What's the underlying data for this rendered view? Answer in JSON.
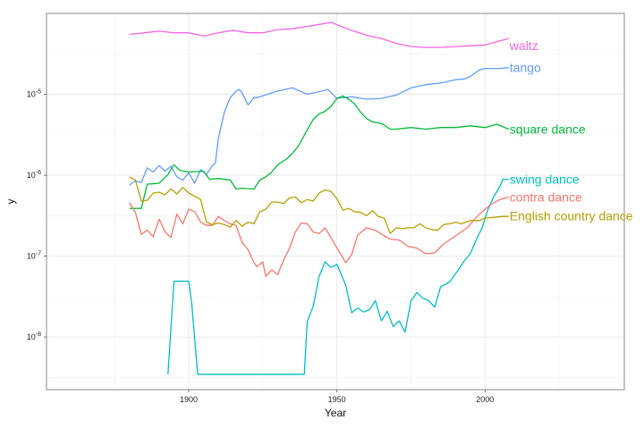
{
  "chart_data": {
    "type": "line",
    "title": "",
    "xlabel": "Year",
    "ylabel": "y",
    "y_scale": "log10",
    "xlim": [
      1852,
      2047
    ],
    "ylim_log10": [
      -8.65,
      -4.0
    ],
    "x_ticks": [
      {
        "value": 1900,
        "label": "1900"
      },
      {
        "value": 1950,
        "label": "1950"
      },
      {
        "value": 2000,
        "label": "2000"
      }
    ],
    "y_ticks": [
      {
        "exp": -8,
        "label": "10",
        "sup": "-8"
      },
      {
        "exp": -7,
        "label": "10",
        "sup": "-7"
      },
      {
        "exp": -6,
        "label": "10",
        "sup": "-6"
      },
      {
        "exp": -5,
        "label": "10",
        "sup": "-5"
      }
    ],
    "grid": true,
    "legend": "direct labels at line ends (right)",
    "series": [
      {
        "name": "waltz",
        "color": "#f564e3",
        "label_log10": -4.4,
        "points": [
          [
            1880,
            -4.26
          ],
          [
            1885,
            -4.24
          ],
          [
            1890,
            -4.22
          ],
          [
            1895,
            -4.24
          ],
          [
            1900,
            -4.24
          ],
          [
            1905,
            -4.28
          ],
          [
            1910,
            -4.24
          ],
          [
            1915,
            -4.21
          ],
          [
            1920,
            -4.24
          ],
          [
            1925,
            -4.24
          ],
          [
            1930,
            -4.2
          ],
          [
            1935,
            -4.19
          ],
          [
            1940,
            -4.16
          ],
          [
            1945,
            -4.13
          ],
          [
            1948,
            -4.11
          ],
          [
            1950,
            -4.14
          ],
          [
            1955,
            -4.21
          ],
          [
            1960,
            -4.27
          ],
          [
            1965,
            -4.31
          ],
          [
            1970,
            -4.37
          ],
          [
            1975,
            -4.41
          ],
          [
            1980,
            -4.42
          ],
          [
            1985,
            -4.42
          ],
          [
            1990,
            -4.41
          ],
          [
            1995,
            -4.4
          ],
          [
            2000,
            -4.39
          ],
          [
            2005,
            -4.34
          ],
          [
            2008,
            -4.31
          ]
        ]
      },
      {
        "name": "tango",
        "color": "#619cff",
        "label_log10": -4.67,
        "points": [
          [
            1880,
            -6.12
          ],
          [
            1882,
            -6.07
          ],
          [
            1884,
            -6.09
          ],
          [
            1886,
            -5.91
          ],
          [
            1888,
            -5.96
          ],
          [
            1890,
            -5.88
          ],
          [
            1892,
            -5.95
          ],
          [
            1894,
            -5.89
          ],
          [
            1896,
            -6.02
          ],
          [
            1898,
            -6.06
          ],
          [
            1900,
            -5.97
          ],
          [
            1902,
            -6.1
          ],
          [
            1904,
            -5.93
          ],
          [
            1906,
            -5.99
          ],
          [
            1908,
            -5.88
          ],
          [
            1909,
            -5.85
          ],
          [
            1910,
            -5.55
          ],
          [
            1912,
            -5.22
          ],
          [
            1914,
            -5.04
          ],
          [
            1916,
            -4.96
          ],
          [
            1917,
            -4.94
          ],
          [
            1918,
            -4.98
          ],
          [
            1920,
            -5.13
          ],
          [
            1922,
            -5.04
          ],
          [
            1923,
            -5.04
          ],
          [
            1925,
            -5.02
          ],
          [
            1930,
            -4.96
          ],
          [
            1935,
            -4.92
          ],
          [
            1940,
            -5.0
          ],
          [
            1945,
            -4.96
          ],
          [
            1947,
            -4.94
          ],
          [
            1950,
            -5.05
          ],
          [
            1955,
            -5.03
          ],
          [
            1960,
            -5.06
          ],
          [
            1965,
            -5.05
          ],
          [
            1970,
            -5.01
          ],
          [
            1975,
            -4.92
          ],
          [
            1980,
            -4.88
          ],
          [
            1985,
            -4.86
          ],
          [
            1990,
            -4.82
          ],
          [
            1993,
            -4.81
          ],
          [
            1995,
            -4.78
          ],
          [
            1998,
            -4.7
          ],
          [
            2000,
            -4.68
          ],
          [
            2005,
            -4.68
          ],
          [
            2008,
            -4.67
          ]
        ]
      },
      {
        "name": "square dance",
        "color": "#00ba38",
        "label_log10": -5.43,
        "points": [
          [
            1880,
            -6.41
          ],
          [
            1884,
            -6.41
          ],
          [
            1886,
            -6.11
          ],
          [
            1890,
            -6.1
          ],
          [
            1893,
            -5.99
          ],
          [
            1895,
            -5.87
          ],
          [
            1897,
            -5.94
          ],
          [
            1900,
            -5.96
          ],
          [
            1905,
            -5.95
          ],
          [
            1907,
            -6.05
          ],
          [
            1910,
            -6.04
          ],
          [
            1914,
            -6.06
          ],
          [
            1916,
            -6.17
          ],
          [
            1918,
            -6.16
          ],
          [
            1922,
            -6.17
          ],
          [
            1924,
            -6.06
          ],
          [
            1926,
            -6.02
          ],
          [
            1928,
            -5.96
          ],
          [
            1930,
            -5.87
          ],
          [
            1933,
            -5.8
          ],
          [
            1935,
            -5.73
          ],
          [
            1937,
            -5.64
          ],
          [
            1940,
            -5.44
          ],
          [
            1942,
            -5.31
          ],
          [
            1944,
            -5.24
          ],
          [
            1946,
            -5.21
          ],
          [
            1948,
            -5.15
          ],
          [
            1950,
            -5.05
          ],
          [
            1952,
            -5.02
          ],
          [
            1954,
            -5.06
          ],
          [
            1956,
            -5.12
          ],
          [
            1958,
            -5.22
          ],
          [
            1960,
            -5.3
          ],
          [
            1962,
            -5.34
          ],
          [
            1965,
            -5.36
          ],
          [
            1968,
            -5.43
          ],
          [
            1970,
            -5.43
          ],
          [
            1975,
            -5.41
          ],
          [
            1980,
            -5.43
          ],
          [
            1985,
            -5.41
          ],
          [
            1990,
            -5.41
          ],
          [
            1995,
            -5.39
          ],
          [
            2000,
            -5.41
          ],
          [
            2004,
            -5.37
          ],
          [
            2008,
            -5.43
          ]
        ]
      },
      {
        "name": "swing dance",
        "color": "#00bfc4",
        "label_log10": -6.05,
        "points": [
          [
            1893,
            -8.46
          ],
          [
            1895,
            -7.31
          ],
          [
            1897,
            -7.31
          ],
          [
            1899,
            -7.31
          ],
          [
            1900,
            -7.31
          ],
          [
            1901,
            -7.58
          ],
          [
            1903,
            -8.46
          ],
          [
            1905,
            -8.46
          ],
          [
            1915,
            -8.46
          ],
          [
            1925,
            -8.46
          ],
          [
            1935,
            -8.46
          ],
          [
            1939,
            -8.46
          ],
          [
            1940,
            -7.81
          ],
          [
            1942,
            -7.62
          ],
          [
            1944,
            -7.25
          ],
          [
            1946,
            -7.07
          ],
          [
            1948,
            -7.14
          ],
          [
            1950,
            -7.1
          ],
          [
            1953,
            -7.36
          ],
          [
            1955,
            -7.7
          ],
          [
            1957,
            -7.64
          ],
          [
            1959,
            -7.69
          ],
          [
            1961,
            -7.66
          ],
          [
            1963,
            -7.55
          ],
          [
            1965,
            -7.8
          ],
          [
            1967,
            -7.68
          ],
          [
            1969,
            -7.87
          ],
          [
            1971,
            -7.8
          ],
          [
            1973,
            -7.94
          ],
          [
            1975,
            -7.55
          ],
          [
            1977,
            -7.45
          ],
          [
            1979,
            -7.52
          ],
          [
            1981,
            -7.55
          ],
          [
            1983,
            -7.63
          ],
          [
            1985,
            -7.38
          ],
          [
            1988,
            -7.32
          ],
          [
            1990,
            -7.22
          ],
          [
            1993,
            -7.06
          ],
          [
            1995,
            -6.97
          ],
          [
            1997,
            -6.8
          ],
          [
            1999,
            -6.65
          ],
          [
            2001,
            -6.42
          ],
          [
            2003,
            -6.26
          ],
          [
            2005,
            -6.14
          ],
          [
            2006,
            -6.05
          ],
          [
            2008,
            -6.05
          ]
        ]
      },
      {
        "name": "contra dance",
        "color": "#f8766d",
        "label_log10": -6.27,
        "points": [
          [
            1880,
            -6.34
          ],
          [
            1882,
            -6.46
          ],
          [
            1884,
            -6.73
          ],
          [
            1886,
            -6.68
          ],
          [
            1888,
            -6.76
          ],
          [
            1890,
            -6.54
          ],
          [
            1892,
            -6.7
          ],
          [
            1894,
            -6.77
          ],
          [
            1896,
            -6.48
          ],
          [
            1898,
            -6.6
          ],
          [
            1900,
            -6.42
          ],
          [
            1902,
            -6.45
          ],
          [
            1904,
            -6.58
          ],
          [
            1906,
            -6.62
          ],
          [
            1908,
            -6.62
          ],
          [
            1910,
            -6.51
          ],
          [
            1912,
            -6.56
          ],
          [
            1914,
            -6.6
          ],
          [
            1916,
            -6.62
          ],
          [
            1918,
            -6.83
          ],
          [
            1920,
            -6.92
          ],
          [
            1922,
            -7.08
          ],
          [
            1923,
            -7.13
          ],
          [
            1925,
            -7.07
          ],
          [
            1926,
            -7.25
          ],
          [
            1928,
            -7.17
          ],
          [
            1930,
            -7.23
          ],
          [
            1932,
            -7.05
          ],
          [
            1934,
            -6.9
          ],
          [
            1936,
            -6.7
          ],
          [
            1938,
            -6.59
          ],
          [
            1940,
            -6.6
          ],
          [
            1942,
            -6.7
          ],
          [
            1944,
            -6.72
          ],
          [
            1946,
            -6.65
          ],
          [
            1948,
            -6.77
          ],
          [
            1950,
            -6.9
          ],
          [
            1952,
            -7.02
          ],
          [
            1953,
            -7.08
          ],
          [
            1955,
            -6.98
          ],
          [
            1957,
            -6.74
          ],
          [
            1960,
            -6.65
          ],
          [
            1963,
            -6.68
          ],
          [
            1966,
            -6.75
          ],
          [
            1968,
            -6.79
          ],
          [
            1971,
            -6.8
          ],
          [
            1974,
            -6.88
          ],
          [
            1977,
            -6.9
          ],
          [
            1980,
            -6.97
          ],
          [
            1983,
            -6.96
          ],
          [
            1986,
            -6.85
          ],
          [
            1990,
            -6.75
          ],
          [
            1994,
            -6.65
          ],
          [
            1997,
            -6.52
          ],
          [
            2000,
            -6.42
          ],
          [
            2002,
            -6.36
          ],
          [
            2005,
            -6.3
          ],
          [
            2008,
            -6.27
          ]
        ]
      },
      {
        "name": "English country dance",
        "color": "#b79f00",
        "label_log10": -6.5,
        "points": [
          [
            1880,
            -6.02
          ],
          [
            1882,
            -6.06
          ],
          [
            1884,
            -6.32
          ],
          [
            1886,
            -6.31
          ],
          [
            1888,
            -6.22
          ],
          [
            1890,
            -6.21
          ],
          [
            1892,
            -6.24
          ],
          [
            1894,
            -6.17
          ],
          [
            1896,
            -6.23
          ],
          [
            1898,
            -6.15
          ],
          [
            1900,
            -6.22
          ],
          [
            1902,
            -6.26
          ],
          [
            1904,
            -6.3
          ],
          [
            1906,
            -6.58
          ],
          [
            1908,
            -6.61
          ],
          [
            1910,
            -6.59
          ],
          [
            1912,
            -6.61
          ],
          [
            1914,
            -6.64
          ],
          [
            1916,
            -6.56
          ],
          [
            1918,
            -6.63
          ],
          [
            1920,
            -6.58
          ],
          [
            1922,
            -6.6
          ],
          [
            1924,
            -6.45
          ],
          [
            1926,
            -6.42
          ],
          [
            1928,
            -6.33
          ],
          [
            1930,
            -6.33
          ],
          [
            1932,
            -6.35
          ],
          [
            1934,
            -6.28
          ],
          [
            1936,
            -6.27
          ],
          [
            1938,
            -6.34
          ],
          [
            1940,
            -6.3
          ],
          [
            1942,
            -6.32
          ],
          [
            1944,
            -6.22
          ],
          [
            1946,
            -6.18
          ],
          [
            1948,
            -6.2
          ],
          [
            1950,
            -6.29
          ],
          [
            1952,
            -6.43
          ],
          [
            1954,
            -6.41
          ],
          [
            1956,
            -6.45
          ],
          [
            1958,
            -6.46
          ],
          [
            1960,
            -6.5
          ],
          [
            1962,
            -6.44
          ],
          [
            1964,
            -6.51
          ],
          [
            1966,
            -6.53
          ],
          [
            1968,
            -6.72
          ],
          [
            1970,
            -6.65
          ],
          [
            1972,
            -6.66
          ],
          [
            1974,
            -6.65
          ],
          [
            1976,
            -6.65
          ],
          [
            1978,
            -6.6
          ],
          [
            1980,
            -6.65
          ],
          [
            1982,
            -6.67
          ],
          [
            1984,
            -6.68
          ],
          [
            1986,
            -6.61
          ],
          [
            1988,
            -6.6
          ],
          [
            1990,
            -6.58
          ],
          [
            1992,
            -6.6
          ],
          [
            1995,
            -6.56
          ],
          [
            1998,
            -6.56
          ],
          [
            2000,
            -6.53
          ],
          [
            2003,
            -6.52
          ],
          [
            2006,
            -6.51
          ],
          [
            2008,
            -6.51
          ]
        ]
      }
    ]
  }
}
